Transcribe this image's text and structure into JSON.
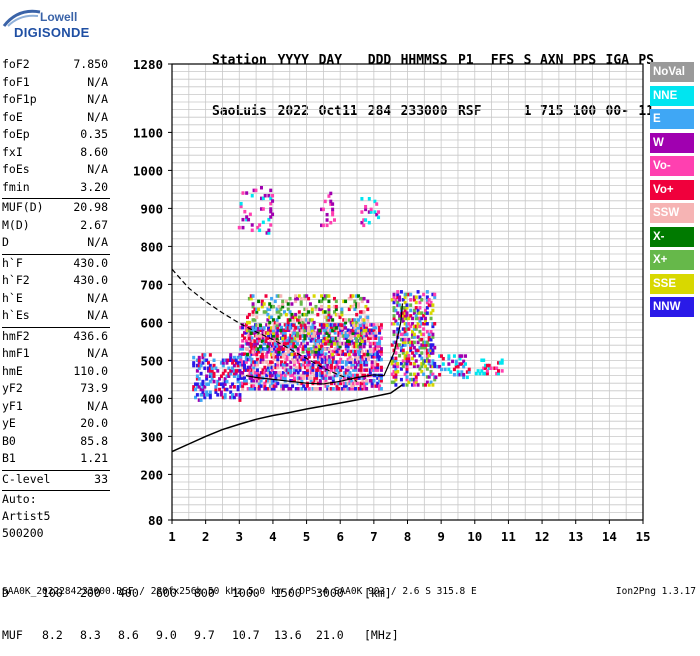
{
  "logo": {
    "line1": "Lowell",
    "line2": "DIGISONDE"
  },
  "header": {
    "labels": [
      "Station",
      "YYYY",
      "DAY",
      "DDD",
      "HHMMSS",
      "P1",
      "FFS",
      "S",
      "AXN",
      "PPS",
      "IGA",
      "PS"
    ],
    "values": [
      "SaoLuis",
      "2022",
      "Oct11",
      "284",
      "233000",
      "RSF",
      "",
      "1",
      "715",
      "100",
      "00-",
      "11"
    ]
  },
  "params": [
    {
      "name": "foF2",
      "value": "7.850"
    },
    {
      "name": "foF1",
      "value": "N/A"
    },
    {
      "name": "foF1p",
      "value": "N/A"
    },
    {
      "name": "foE",
      "value": "N/A"
    },
    {
      "name": "foEp",
      "value": "0.35"
    },
    {
      "name": "fxI",
      "value": "8.60"
    },
    {
      "name": "foEs",
      "value": "N/A"
    },
    {
      "name": "fmin",
      "value": "3.20"
    },
    {
      "sep": true
    },
    {
      "name": "MUF(D)",
      "value": "20.98"
    },
    {
      "name": "M(D)",
      "value": "2.67"
    },
    {
      "name": "D",
      "value": "N/A"
    },
    {
      "sep": true
    },
    {
      "name": "h`F",
      "value": "430.0"
    },
    {
      "name": "h`F2",
      "value": "430.0"
    },
    {
      "name": "h`E",
      "value": "N/A"
    },
    {
      "name": "h`Es",
      "value": "N/A"
    },
    {
      "sep": true
    },
    {
      "name": "hmF2",
      "value": "436.6"
    },
    {
      "name": "hmF1",
      "value": "N/A"
    },
    {
      "name": "hmE",
      "value": "110.0"
    },
    {
      "name": "yF2",
      "value": "73.9"
    },
    {
      "name": "yF1",
      "value": "N/A"
    },
    {
      "name": "yE",
      "value": "20.0"
    },
    {
      "name": "B0",
      "value": "85.8"
    },
    {
      "name": "B1",
      "value": "1.21"
    },
    {
      "sep": true
    },
    {
      "name": "C-level",
      "value": "33"
    },
    {
      "sep": true
    },
    {
      "text": "Auto:"
    },
    {
      "text": "Artist5"
    },
    {
      "text": "500200"
    }
  ],
  "legend": [
    {
      "label": "NoVal",
      "color": "#9a9a9a"
    },
    {
      "label": "NNE",
      "color": "#00e5f0"
    },
    {
      "label": "E",
      "color": "#3fa7f5"
    },
    {
      "label": "W",
      "color": "#a000b0"
    },
    {
      "label": "Vo-",
      "color": "#ff40b0"
    },
    {
      "label": "Vo+",
      "color": "#f0003c"
    },
    {
      "label": "SSW",
      "color": "#f6b4b4"
    },
    {
      "label": "X-",
      "color": "#007a00"
    },
    {
      "label": "X+",
      "color": "#66b84a"
    },
    {
      "label": "SSE",
      "color": "#d8d800"
    },
    {
      "label": "NNW",
      "color": "#2a1ae8"
    }
  ],
  "chart_data": {
    "type": "scatter",
    "xlim": [
      1,
      15
    ],
    "ylim": [
      80,
      1280
    ],
    "x_ticks": [
      "1",
      "2",
      "3",
      "4",
      "5",
      "6",
      "7",
      "8",
      "9",
      "10",
      "11",
      "12",
      "13",
      "14",
      "15"
    ],
    "y_ticks": [
      "80",
      "200",
      "300",
      "400",
      "500",
      "600",
      "700",
      "800",
      "900",
      "1000",
      "1100",
      "1280"
    ],
    "grid": true,
    "profile_line": {
      "x": [
        1.0,
        1.5,
        2.0,
        2.5,
        3.0,
        3.5,
        4.0,
        4.5,
        5.0,
        5.5,
        6.0,
        6.5,
        7.0,
        7.5,
        7.85
      ],
      "y": [
        260,
        280,
        300,
        318,
        332,
        345,
        355,
        363,
        372,
        380,
        388,
        396,
        405,
        414,
        436
      ]
    },
    "trace_line": {
      "x": [
        3.2,
        3.5,
        4.0,
        4.5,
        5.0,
        5.5,
        6.0,
        6.5,
        7.0,
        7.3,
        7.6,
        7.8,
        7.85
      ],
      "y": [
        460,
        455,
        450,
        445,
        440,
        438,
        445,
        455,
        462,
        460,
        520,
        600,
        650
      ]
    },
    "dashed_line": {
      "x": [
        1.0,
        1.5,
        2.0,
        2.5,
        3.0,
        3.5,
        4.0,
        4.5,
        5.0,
        5.5,
        6.0,
        6.5
      ],
      "y": [
        740,
        690,
        655,
        625,
        598,
        575,
        555,
        530,
        505,
        480,
        460,
        445
      ]
    },
    "echo_clusters": [
      {
        "x": [
          2.9,
          4.0
        ],
        "y": [
          840,
          960
        ],
        "colors": [
          "W",
          "Vo-",
          "NNE"
        ],
        "density": 0.12
      },
      {
        "x": [
          5.4,
          5.8
        ],
        "y": [
          860,
          950
        ],
        "colors": [
          "W",
          "Vo-"
        ],
        "density": 0.18
      },
      {
        "x": [
          6.6,
          7.1
        ],
        "y": [
          860,
          930
        ],
        "colors": [
          "W",
          "Vo-",
          "NNE"
        ],
        "density": 0.2
      },
      {
        "x": [
          1.6,
          3.0
        ],
        "y": [
          400,
          520
        ],
        "colors": [
          "NNW",
          "W",
          "E",
          "Vo+"
        ],
        "density": 0.3
      },
      {
        "x": [
          3.0,
          7.2
        ],
        "y": [
          430,
          600
        ],
        "colors": [
          "W",
          "Vo-",
          "Vo+",
          "SSW",
          "NNW",
          "E"
        ],
        "density": 0.55
      },
      {
        "x": [
          3.2,
          6.8
        ],
        "y": [
          520,
          680
        ],
        "colors": [
          "SSE",
          "X+",
          "X-",
          "Vo+",
          "W",
          "E",
          "SSW"
        ],
        "density": 0.25
      },
      {
        "x": [
          7.5,
          8.8
        ],
        "y": [
          440,
          690
        ],
        "colors": [
          "Vo+",
          "W",
          "SSE",
          "X+",
          "E",
          "NNW",
          "Vo-"
        ],
        "density": 0.35
      },
      {
        "x": [
          8.8,
          9.8
        ],
        "y": [
          460,
          520
        ],
        "colors": [
          "Vo+",
          "W",
          "E",
          "NNE"
        ],
        "density": 0.35
      },
      {
        "x": [
          10.0,
          10.8
        ],
        "y": [
          470,
          510
        ],
        "colors": [
          "Vo+",
          "Vo-",
          "NNE"
        ],
        "density": 0.3
      }
    ]
  },
  "footer": {
    "d_label": "D",
    "d_values": [
      "100",
      "200",
      "400",
      "600",
      "800",
      "1000",
      "1500",
      "3000",
      "[km]"
    ],
    "muf_label": "MUF",
    "muf_values": [
      "8.2",
      "8.3",
      "8.6",
      "9.0",
      "9.7",
      "10.7",
      "13.6",
      "21.0",
      "[MHz]"
    ],
    "bottom_line": "SAA0K_2022284233000.RSF / 280fx256h 50 kHz 5.0 km / DPS-4 SAA0K 903 / 2.6 S 315.8 E",
    "version": "Ion2Png 1.3.17"
  }
}
